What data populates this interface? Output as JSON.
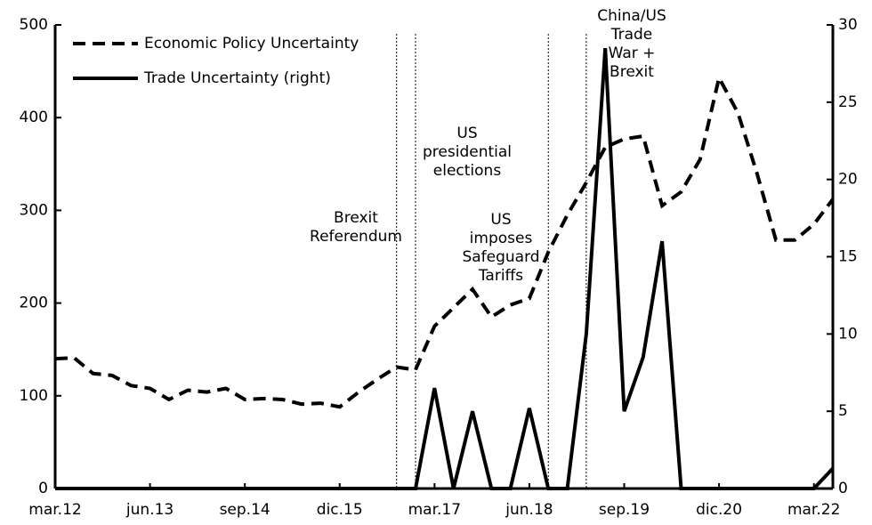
{
  "chart_data": {
    "type": "line",
    "categories": [
      "mar.12",
      null,
      null,
      null,
      null,
      "jun.13",
      null,
      null,
      null,
      null,
      "sep.14",
      null,
      null,
      null,
      null,
      "dic.15",
      null,
      null,
      null,
      null,
      "mar.17",
      null,
      null,
      null,
      null,
      "jun.18",
      null,
      null,
      null,
      null,
      "sep.19",
      null,
      null,
      null,
      null,
      "dic.20",
      null,
      null,
      null,
      null,
      "mar.22",
      null
    ],
    "series": [
      {
        "name": "Economic Policy Uncertainty",
        "color": "#000000",
        "dash": true,
        "axis": "y",
        "values": [
          140,
          141,
          124,
          122,
          111,
          108,
          96,
          106,
          104,
          108,
          96,
          97,
          96,
          91,
          92,
          88,
          104,
          118,
          131,
          128,
          175,
          195,
          215,
          185,
          198,
          205,
          255,
          295,
          330,
          368,
          377,
          380,
          305,
          320,
          355,
          443,
          405,
          340,
          268,
          268,
          285,
          312
        ]
      },
      {
        "name": "Trade Uncertainty (right)",
        "color": "#000000",
        "dash": false,
        "axis": "y2",
        "values": [
          0,
          0,
          0,
          0,
          0,
          0,
          0,
          0,
          0,
          0,
          0,
          0,
          0,
          0,
          0,
          0,
          0,
          0,
          0,
          0,
          6.5,
          0,
          5,
          0,
          0,
          5.2,
          0,
          0,
          10,
          28.5,
          5,
          8.5,
          16,
          0,
          0,
          0,
          0,
          0,
          0,
          0,
          0,
          1.3
        ]
      }
    ],
    "ylim": [
      0,
      500
    ],
    "yticks": [
      0,
      100,
      200,
      300,
      400,
      500
    ],
    "y2lim": [
      0,
      30
    ],
    "y2ticks": [
      0,
      5,
      10,
      15,
      20,
      25,
      30
    ],
    "events": [
      {
        "x": 18,
        "label": [
          "Brexit",
          "Referendum"
        ]
      },
      {
        "x": 19,
        "label": [
          "US",
          "presidential",
          "elections"
        ]
      },
      {
        "x": 26,
        "label": [
          "US",
          "imposes",
          "Safeguard",
          "Tariffs"
        ]
      },
      {
        "x": 28,
        "label": [
          "China/US",
          "Trade",
          "War +",
          "Brexit"
        ]
      }
    ],
    "legend": "top-left"
  }
}
